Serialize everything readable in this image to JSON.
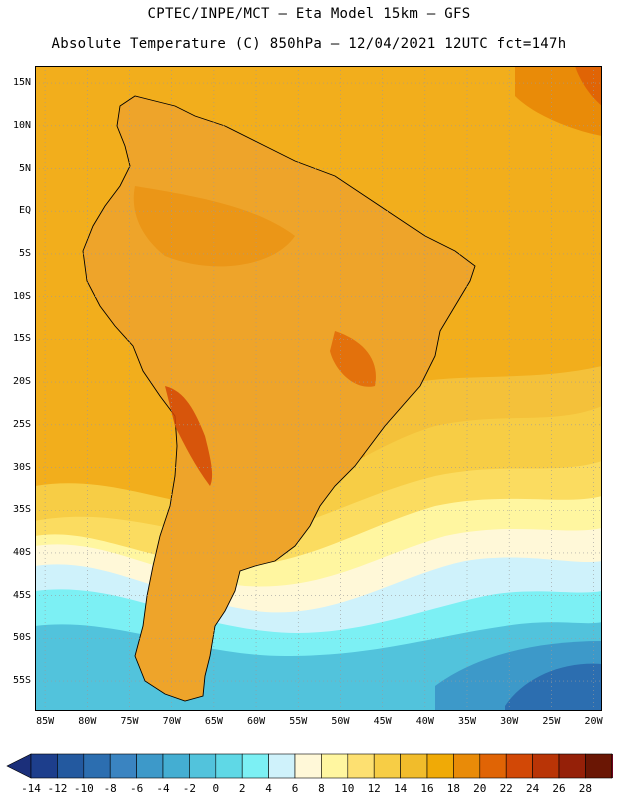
{
  "header": {
    "line1": "CPTEC/INPE/MCT –  Eta Model 15km – GFS",
    "line2": "Absolute Temperature (C) 850hPa – 12/04/2021 12UTC fct=147h"
  },
  "map": {
    "lat_ticks": [
      "15N",
      "10N",
      "5N",
      "EQ",
      "5S",
      "10S",
      "15S",
      "20S",
      "25S",
      "30S",
      "35S",
      "40S",
      "45S",
      "50S",
      "55S"
    ],
    "lon_ticks": [
      "85W",
      "80W",
      "75W",
      "70W",
      "65W",
      "60W",
      "55W",
      "50W",
      "45W",
      "40W",
      "35W",
      "30W",
      "25W",
      "20W"
    ],
    "grid": true,
    "colors": {
      "frame": "#000000",
      "grid": "#9a9a9a",
      "land_base": "#eea42a",
      "ocean_tropical": "#f2ae1c"
    }
  },
  "colorbar": {
    "labels": [
      "-14",
      "-12",
      "-10",
      "-8",
      "-6",
      "-4",
      "-2",
      "0",
      "2",
      "4",
      "6",
      "8",
      "10",
      "12",
      "14",
      "16",
      "18",
      "20",
      "22",
      "24",
      "26",
      "28"
    ],
    "colors": [
      "#1d3e8c",
      "#23599f",
      "#2c6eb0",
      "#3a84c1",
      "#3d99c9",
      "#44aed2",
      "#52c3dc",
      "#5fd8e6",
      "#7cf0f4",
      "#cff2fb",
      "#fff8d8",
      "#fff6a0",
      "#fde071",
      "#f7cd45",
      "#f1bc2b",
      "#f0aa06",
      "#e98b08",
      "#e06405",
      "#d24806",
      "#b93406",
      "#952008",
      "#6a1604"
    ],
    "left_arrow_color": "#1b2f7a",
    "right_arrow_color": "#7a0022"
  }
}
